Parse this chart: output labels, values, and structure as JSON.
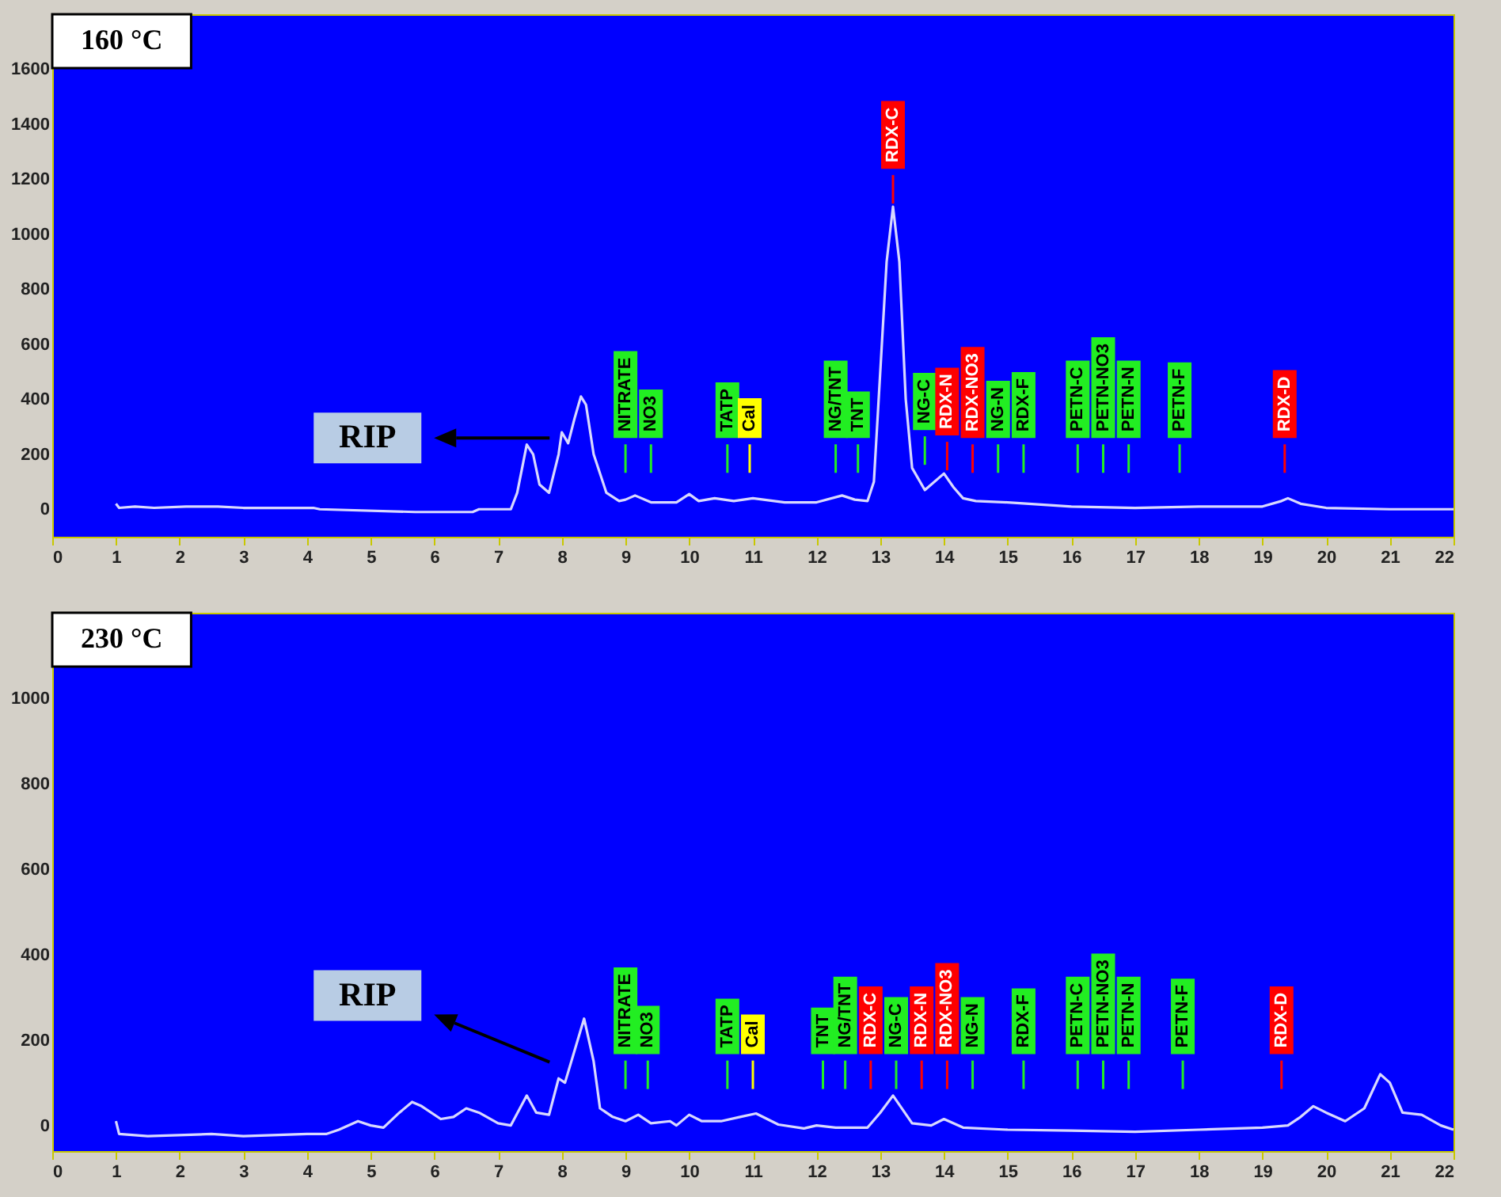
{
  "chart_data": [
    {
      "type": "line",
      "title": "160 °C",
      "xlim": [
        0,
        22
      ],
      "xticks": [
        0,
        1,
        2,
        3,
        4,
        5,
        6,
        7,
        8,
        9,
        10,
        11,
        12,
        13,
        14,
        15,
        16,
        17,
        18,
        19,
        20,
        21,
        22
      ],
      "ylim": [
        -100,
        1800
      ],
      "yticks": [
        0,
        200,
        400,
        600,
        800,
        1000,
        1200,
        1400,
        1600
      ],
      "x": [
        1.0,
        1.05,
        1.3,
        1.6,
        2.1,
        2.6,
        3.0,
        4.1,
        4.2,
        5.7,
        6.6,
        6.7,
        7.2,
        7.3,
        7.45,
        7.55,
        7.65,
        7.8,
        7.95,
        8.0,
        8.1,
        8.2,
        8.3,
        8.38,
        8.5,
        8.7,
        8.9,
        9.0,
        9.15,
        9.4,
        9.8,
        10.0,
        10.15,
        10.4,
        10.7,
        11.0,
        11.5,
        12.0,
        12.4,
        12.6,
        12.8,
        12.9,
        13.0,
        13.1,
        13.2,
        13.3,
        13.4,
        13.5,
        13.7,
        14.0,
        14.15,
        14.3,
        14.5,
        15.0,
        16.0,
        17.0,
        18.0,
        19.0,
        19.3,
        19.4,
        19.6,
        20.0,
        21.0,
        22.0
      ],
      "series": [
        {
          "color": "#d8d8ff",
          "values": [
            20,
            5,
            10,
            5,
            10,
            10,
            5,
            5,
            0,
            -10,
            -10,
            0,
            0,
            60,
            235,
            200,
            90,
            60,
            200,
            280,
            240,
            330,
            410,
            380,
            200,
            60,
            30,
            35,
            50,
            25,
            25,
            55,
            30,
            40,
            30,
            40,
            25,
            25,
            50,
            35,
            30,
            100,
            500,
            900,
            1100,
            900,
            400,
            150,
            70,
            130,
            80,
            40,
            30,
            25,
            10,
            5,
            10,
            10,
            30,
            40,
            20,
            5,
            0,
            0
          ]
        }
      ],
      "annotations": [
        "RIP"
      ],
      "ref_lines": [
        {
          "axis": "x",
          "value": 9.0,
          "label": "NITRATE",
          "color": "#22ee22"
        },
        {
          "axis": "x",
          "value": 9.4,
          "label": "NO3",
          "color": "#22ee22"
        },
        {
          "axis": "x",
          "value": 10.6,
          "label": "TATP",
          "color": "#22ee22"
        },
        {
          "axis": "x",
          "value": 10.95,
          "label": "Cal",
          "color": "#ffff00"
        },
        {
          "axis": "x",
          "value": 12.3,
          "label": "NG/TNT",
          "color": "#22ee22"
        },
        {
          "axis": "x",
          "value": 12.65,
          "label": "TNT",
          "color": "#22ee22"
        },
        {
          "axis": "x",
          "value": 13.2,
          "label": "RDX-C",
          "color": "#ff0000"
        },
        {
          "axis": "x",
          "value": 13.7,
          "label": "NG-C",
          "color": "#22ee22"
        },
        {
          "axis": "x",
          "value": 14.05,
          "label": "RDX-N",
          "color": "#ff0000"
        },
        {
          "axis": "x",
          "value": 14.45,
          "label": "RDX-NO3",
          "color": "#ff0000"
        },
        {
          "axis": "x",
          "value": 14.85,
          "label": "NG-N",
          "color": "#22ee22"
        },
        {
          "axis": "x",
          "value": 15.25,
          "label": "RDX-F",
          "color": "#22ee22"
        },
        {
          "axis": "x",
          "value": 16.1,
          "label": "PETN-C",
          "color": "#22ee22"
        },
        {
          "axis": "x",
          "value": 16.5,
          "label": "PETN-NO3",
          "color": "#22ee22"
        },
        {
          "axis": "x",
          "value": 16.9,
          "label": "PETN-N",
          "color": "#22ee22"
        },
        {
          "axis": "x",
          "value": 17.7,
          "label": "PETN-F",
          "color": "#22ee22"
        },
        {
          "axis": "x",
          "value": 19.35,
          "label": "RDX-D",
          "color": "#ff0000"
        }
      ]
    },
    {
      "type": "line",
      "title": "230 °C",
      "xlim": [
        0,
        22
      ],
      "xticks": [
        0,
        1,
        2,
        3,
        4,
        5,
        6,
        7,
        8,
        9,
        10,
        11,
        12,
        13,
        14,
        15,
        16,
        17,
        18,
        19,
        20,
        21,
        22
      ],
      "ylim": [
        -60,
        1200
      ],
      "yticks": [
        0,
        200,
        400,
        600,
        800,
        1000
      ],
      "x": [
        1.0,
        1.05,
        1.5,
        2.5,
        3.0,
        4.0,
        4.3,
        4.5,
        4.8,
        5.0,
        5.2,
        5.45,
        5.65,
        5.8,
        6.1,
        6.3,
        6.5,
        6.7,
        7.0,
        7.2,
        7.45,
        7.6,
        7.8,
        7.95,
        8.05,
        8.35,
        8.5,
        8.6,
        8.8,
        9.0,
        9.2,
        9.4,
        9.7,
        9.8,
        10.0,
        10.2,
        10.5,
        10.8,
        11.05,
        11.4,
        11.8,
        12.0,
        12.3,
        12.8,
        13.0,
        13.2,
        13.5,
        13.8,
        14.0,
        14.3,
        15.0,
        16.0,
        17.0,
        18.0,
        19.0,
        19.4,
        19.6,
        19.8,
        20.0,
        20.3,
        20.6,
        20.85,
        21.0,
        21.2,
        21.5,
        21.8,
        22.0
      ],
      "series": [
        {
          "color": "#d8d8ff",
          "values": [
            10,
            -20,
            -25,
            -20,
            -25,
            -20,
            -20,
            -10,
            10,
            0,
            -5,
            30,
            55,
            45,
            15,
            20,
            40,
            30,
            5,
            0,
            70,
            30,
            25,
            110,
            100,
            250,
            150,
            40,
            20,
            10,
            25,
            5,
            10,
            0,
            25,
            10,
            10,
            20,
            28,
            2,
            -7,
            0,
            -5,
            -5,
            30,
            70,
            5,
            0,
            15,
            -5,
            -10,
            -12,
            -15,
            -10,
            -5,
            0,
            20,
            45,
            30,
            10,
            40,
            120,
            100,
            30,
            25,
            0,
            -10
          ]
        }
      ],
      "annotations": [
        "RIP"
      ],
      "ref_lines": [
        {
          "axis": "x",
          "value": 9.0,
          "label": "NITRATE",
          "color": "#22ee22"
        },
        {
          "axis": "x",
          "value": 9.35,
          "label": "NO3",
          "color": "#22ee22"
        },
        {
          "axis": "x",
          "value": 10.6,
          "label": "TATP",
          "color": "#22ee22"
        },
        {
          "axis": "x",
          "value": 11.0,
          "label": "Cal",
          "color": "#ffff00"
        },
        {
          "axis": "x",
          "value": 12.1,
          "label": "TNT",
          "color": "#22ee22"
        },
        {
          "axis": "x",
          "value": 12.45,
          "label": "NG/TNT",
          "color": "#22ee22"
        },
        {
          "axis": "x",
          "value": 12.85,
          "label": "RDX-C",
          "color": "#ff0000"
        },
        {
          "axis": "x",
          "value": 13.25,
          "label": "NG-C",
          "color": "#22ee22"
        },
        {
          "axis": "x",
          "value": 13.65,
          "label": "RDX-N",
          "color": "#ff0000"
        },
        {
          "axis": "x",
          "value": 14.05,
          "label": "RDX-NO3",
          "color": "#ff0000"
        },
        {
          "axis": "x",
          "value": 14.45,
          "label": "NG-N",
          "color": "#22ee22"
        },
        {
          "axis": "x",
          "value": 15.25,
          "label": "RDX-F",
          "color": "#22ee22"
        },
        {
          "axis": "x",
          "value": 16.1,
          "label": "PETN-C",
          "color": "#22ee22"
        },
        {
          "axis": "x",
          "value": 16.5,
          "label": "PETN-NO3",
          "color": "#22ee22"
        },
        {
          "axis": "x",
          "value": 16.9,
          "label": "PETN-N",
          "color": "#22ee22"
        },
        {
          "axis": "x",
          "value": 17.75,
          "label": "PETN-F",
          "color": "#22ee22"
        },
        {
          "axis": "x",
          "value": 19.3,
          "label": "RDX-D",
          "color": "#ff0000"
        }
      ]
    }
  ]
}
